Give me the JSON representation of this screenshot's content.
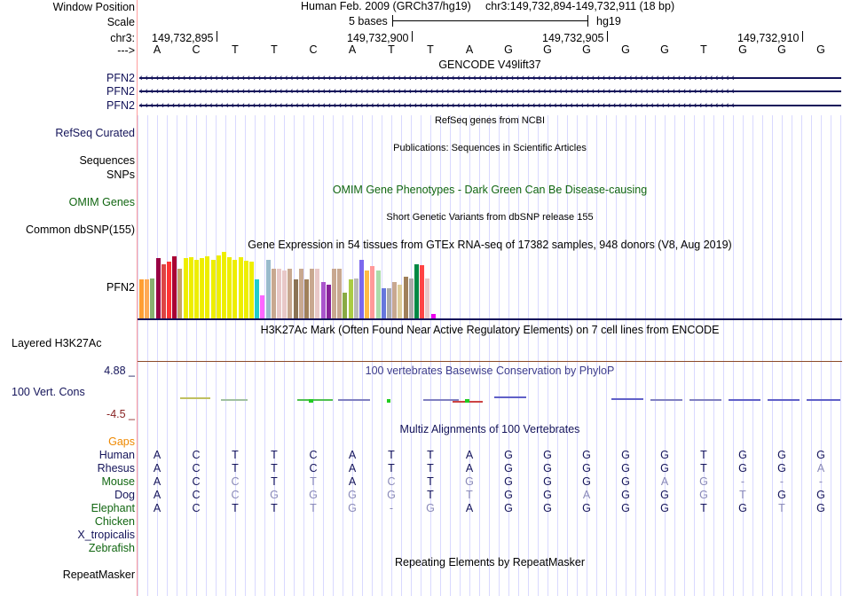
{
  "header": {
    "window_position_label": "Window Position",
    "scale_label": "Scale",
    "chrom_label": "chr3:",
    "strand_label": "--->",
    "assembly": "Human Feb. 2009 (GRCh37/hg19)",
    "position": "chr3:149,732,894-149,732,911 (18 bp)",
    "scale_text": "5 bases",
    "db": "hg19",
    "coordinates": [
      "149,732,895",
      "149,732,900",
      "149,732,905",
      "149,732,910"
    ],
    "sequence": [
      "A",
      "C",
      "T",
      "T",
      "C",
      "A",
      "T",
      "T",
      "A",
      "G",
      "G",
      "G",
      "G",
      "G",
      "T",
      "G",
      "G",
      "G"
    ]
  },
  "tracks": {
    "gencode": {
      "title": "GENCODE V49lift37",
      "genes": [
        "PFN2",
        "PFN2",
        "PFN2"
      ]
    },
    "refseq": {
      "title": "RefSeq genes from NCBI",
      "label": "RefSeq Curated"
    },
    "publications": {
      "title": "Publications: Sequences in Scientific Articles",
      "label1": "Sequences",
      "label2": "SNPs"
    },
    "omim": {
      "title": "OMIM Gene Phenotypes - Dark Green Can Be Disease-causing",
      "label": "OMIM Genes"
    },
    "dbsnp": {
      "title": "Short Genetic Variants from dbSNP release 155",
      "label": "Common dbSNP(155)"
    },
    "gtex": {
      "title": "Gene Expression in 54 tissues from GTEx RNA-seq of 17382 samples, 948 donors (V8, Aug 2019)",
      "label": "PFN2",
      "bars": [
        {
          "v": 0.58,
          "c": "#ff9f33"
        },
        {
          "v": 0.58,
          "c": "#ffaa55"
        },
        {
          "v": 0.6,
          "c": "#88b070"
        },
        {
          "v": 0.9,
          "c": "#990044"
        },
        {
          "v": 0.82,
          "c": "#dd4444"
        },
        {
          "v": 0.85,
          "c": "#ff3333"
        },
        {
          "v": 0.93,
          "c": "#aa0033"
        },
        {
          "v": 0.75,
          "c": "#c4a46a"
        },
        {
          "v": 0.9,
          "c": "#eeee00"
        },
        {
          "v": 0.92,
          "c": "#eeee00"
        },
        {
          "v": 0.88,
          "c": "#eeee00"
        },
        {
          "v": 0.9,
          "c": "#eeee00"
        },
        {
          "v": 0.93,
          "c": "#eeee00"
        },
        {
          "v": 0.88,
          "c": "#eeee00"
        },
        {
          "v": 0.95,
          "c": "#eeee00"
        },
        {
          "v": 1.0,
          "c": "#eeee00"
        },
        {
          "v": 0.92,
          "c": "#eeee00"
        },
        {
          "v": 0.88,
          "c": "#eeee00"
        },
        {
          "v": 0.92,
          "c": "#eeee00"
        },
        {
          "v": 0.87,
          "c": "#eeee00"
        },
        {
          "v": 0.85,
          "c": "#eeee00"
        },
        {
          "v": 0.58,
          "c": "#22cccc"
        },
        {
          "v": 0.35,
          "c": "#ff66ff"
        },
        {
          "v": 0.88,
          "c": "#99bbcc"
        },
        {
          "v": 0.75,
          "c": "#c8a890"
        },
        {
          "v": 0.75,
          "c": "#e8c8c8"
        },
        {
          "v": 0.72,
          "c": "#e8c8c8"
        },
        {
          "v": 0.75,
          "c": "#c8a890"
        },
        {
          "v": 0.58,
          "c": "#8b7355"
        },
        {
          "v": 0.75,
          "c": "#c8a890"
        },
        {
          "v": 0.58,
          "c": "#a0805a"
        },
        {
          "v": 0.75,
          "c": "#c8a890"
        },
        {
          "v": 0.75,
          "c": "#e8c8c8"
        },
        {
          "v": 0.55,
          "c": "#aa55cc"
        },
        {
          "v": 0.5,
          "c": "#882299"
        },
        {
          "v": 0.75,
          "c": "#c8a890"
        },
        {
          "v": 0.75,
          "c": "#c8a890"
        },
        {
          "v": 0.38,
          "c": "#88aa44"
        },
        {
          "v": 0.58,
          "c": "#aacc44"
        },
        {
          "v": 0.6,
          "c": "#b8b8b8"
        },
        {
          "v": 0.88,
          "c": "#7b68ee"
        },
        {
          "v": 0.72,
          "c": "#ffbb44"
        },
        {
          "v": 0.78,
          "c": "#ff9999"
        },
        {
          "v": 0.72,
          "c": "#aaddaa"
        },
        {
          "v": 0.45,
          "c": "#6677dd"
        },
        {
          "v": 0.45,
          "c": "#aaaaaa"
        },
        {
          "v": 0.55,
          "c": "#c8a890"
        },
        {
          "v": 0.5,
          "c": "#ddcc99"
        },
        {
          "v": 0.62,
          "c": "#a0805a"
        },
        {
          "v": 0.6,
          "c": "#aaaaaa"
        },
        {
          "v": 0.82,
          "c": "#008844"
        },
        {
          "v": 0.8,
          "c": "#ff4444"
        },
        {
          "v": 0.6,
          "c": "#e8c8c8"
        },
        {
          "v": 0.07,
          "c": "#ee00ee"
        }
      ]
    },
    "h3k27ac": {
      "title": "H3K27Ac Mark (Often Found Near Active Regulatory Elements) on 7 cell lines from ENCODE",
      "label": "Layered H3K27Ac"
    },
    "phylop": {
      "title": "100 vertebrates Basewise Conservation by PhyloP",
      "label": "100 Vert. Cons",
      "max": "4.88 _",
      "min": "-4.5 _"
    },
    "multiz": {
      "title": "Multiz Alignments of 100 Vertebrates",
      "gaps_label": "Gaps",
      "species": [
        {
          "name": "Human",
          "color": "#14145a",
          "bases": [
            "A",
            "C",
            "T",
            "T",
            "C",
            "A",
            "T",
            "T",
            "A",
            "G",
            "G",
            "G",
            "G",
            "G",
            "T",
            "G",
            "G",
            "G"
          ]
        },
        {
          "name": "Rhesus",
          "color": "#14145a",
          "bases": [
            "A",
            "C",
            "T",
            "T",
            "C",
            "A",
            "T",
            "T",
            "A",
            "G",
            "G",
            "G",
            "G",
            "G",
            "T",
            "G",
            "G",
            "A"
          ]
        },
        {
          "name": "Mouse",
          "color": "#116611",
          "bases": [
            "A",
            "C",
            "C",
            "T",
            "T",
            "A",
            "C",
            "T",
            "G",
            "G",
            "G",
            "G",
            "G",
            "A",
            "G",
            "-",
            "-",
            "-"
          ]
        },
        {
          "name": "Dog",
          "color": "#14145a",
          "bases": [
            "A",
            "C",
            "C",
            "G",
            "G",
            "G",
            "G",
            "T",
            "T",
            "G",
            "G",
            "A",
            "G",
            "G",
            "G",
            "T",
            "G",
            "G"
          ]
        },
        {
          "name": "Elephant",
          "color": "#116611",
          "bases": [
            "A",
            "C",
            "T",
            "T",
            "T",
            "G",
            "-",
            "G",
            "A",
            "G",
            "G",
            "G",
            "G",
            "G",
            "T",
            "G",
            "T",
            "G"
          ]
        },
        {
          "name": "Chicken",
          "color": "#116611",
          "bases": []
        },
        {
          "name": "X_tropicalis",
          "color": "#14145a",
          "bases": []
        },
        {
          "name": "Zebrafish",
          "color": "#116611",
          "bases": []
        }
      ]
    },
    "repeatmasker": {
      "title": "Repeating Elements by RepeatMasker",
      "label": "RepeatMasker"
    }
  },
  "colors": {
    "label_blue": "#14145a",
    "omim_green": "#116611",
    "gaps_orange": "#ee8800",
    "phylop_min": "#882222",
    "phylop_title": "#3c3c8c",
    "grid": "#d9d9ff",
    "faded_base": "#8a8ab8"
  }
}
